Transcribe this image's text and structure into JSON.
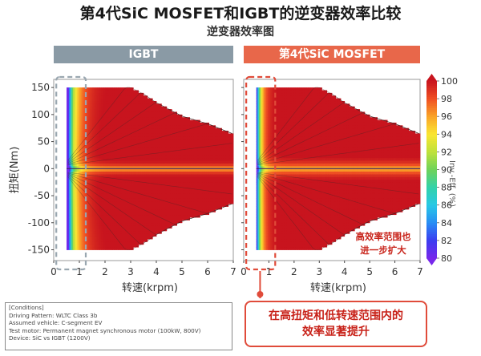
{
  "title": "第4代SiC MOSFET和IGBT的逆变器效率比较",
  "subtitle": "逆变器效率图",
  "panels": [
    {
      "label": "IGBT",
      "header_color": "#8a9aa5"
    },
    {
      "label": "第4代SiC MOSFET",
      "header_color": "#e8674a"
    }
  ],
  "chart_data": {
    "type": "heatmap",
    "x_label": "转速(krpm)",
    "y_label": "扭矩(Nm)",
    "x_ticks": [
      0,
      1,
      2,
      3,
      4,
      5,
      6,
      7
    ],
    "y_ticks": [
      150,
      100,
      50,
      0,
      -50,
      -100,
      -150
    ],
    "xlim": [
      0,
      7
    ],
    "ylim": [
      -170,
      165
    ],
    "colorbar": {
      "label": "Inv.-Eff. (%)",
      "ticks": [
        100,
        98,
        96,
        94,
        92,
        90,
        88,
        86,
        84,
        82,
        80
      ],
      "range": [
        80,
        100
      ]
    },
    "max_torque_envelope": {
      "speed_krpm": [
        0.5,
        3.0,
        3.5,
        4.0,
        5.0,
        6.0,
        7.0
      ],
      "torque_nm": [
        150,
        150,
        138,
        122,
        97,
        83,
        64
      ]
    }
  },
  "annotations": {
    "high_eff_region": [
      "高效率范围也",
      "进一步扩大"
    ],
    "low_speed_note": [
      "在高扭矩和低转速范围内的",
      "效率显著提升"
    ]
  },
  "conditions": [
    "[Conditions]",
    "Driving Pattern: WLTC Class 3b",
    "Assumed vehicle: C-segment EV",
    "Test motor: Permanent magnet synchronous motor (100kW, 800V)",
    "Device: SiC vs IGBT (1200V)"
  ],
  "colors": {
    "igbt": "#8a9aa5",
    "sic": "#e8674a",
    "accent_red": "#e04b3a"
  }
}
